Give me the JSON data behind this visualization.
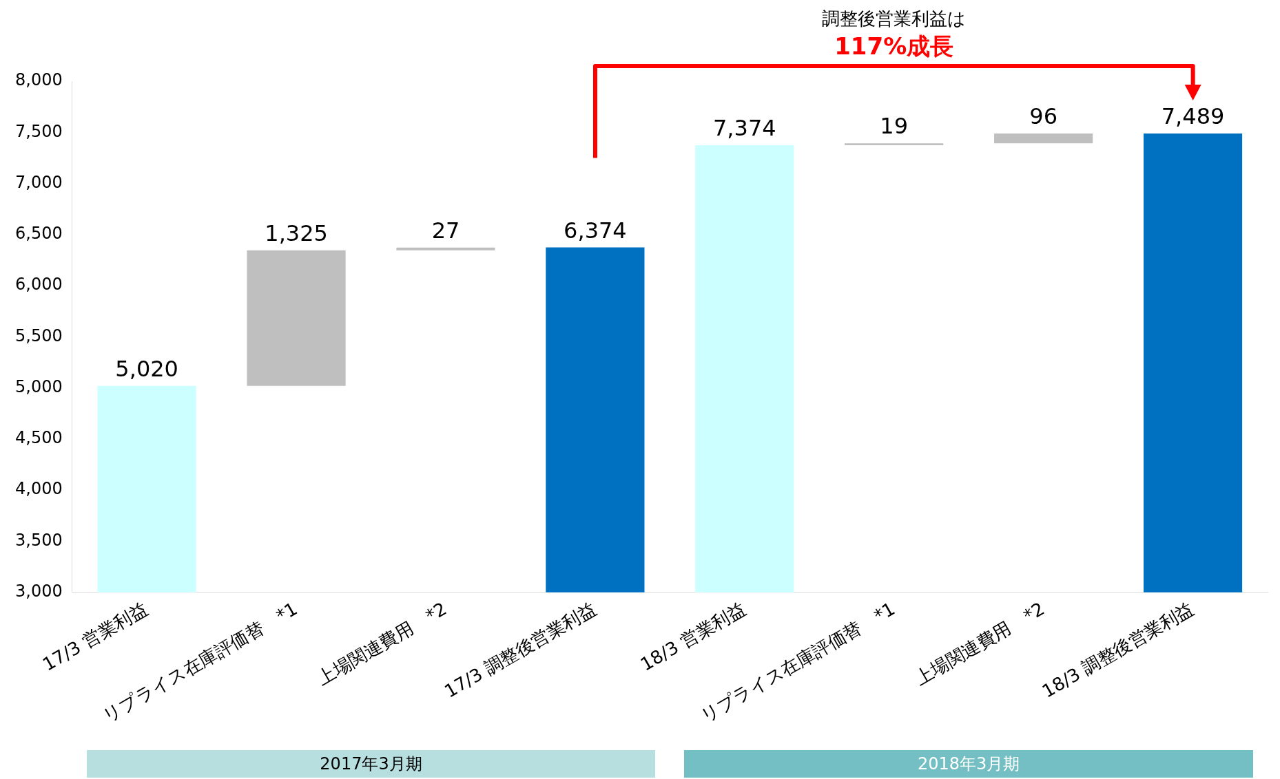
{
  "chart_data": {
    "type": "bar",
    "categories": [
      "17/3 営業利益",
      "リプライス在庫評価替　*1",
      "上場関連費用　*2",
      "17/3 調整後営業利益",
      "18/3 営業利益",
      "リプライス在庫評価替　*1",
      "上場関連費用　*2",
      "18/3 調整後営業利益"
    ],
    "values": [
      5020,
      1325,
      27,
      6374,
      7374,
      19,
      96,
      7489
    ],
    "base": [
      0,
      5020,
      6345,
      0,
      0,
      7374,
      7393,
      0
    ],
    "colors": [
      "#ccffff",
      "#bfbfbf",
      "#bfbfbf",
      "#0070c0",
      "#ccffff",
      "#bfbfbf",
      "#bfbfbf",
      "#0070c0"
    ],
    "value_labels": [
      "5,020",
      "1,325",
      "27",
      "6,374",
      "7,374",
      "19",
      "96",
      "7,489"
    ],
    "ylim": [
      3000,
      8000
    ],
    "yticks": [
      {
        "value": 3000,
        "label": "3,000"
      },
      {
        "value": 3500,
        "label": "3,500"
      },
      {
        "value": 4000,
        "label": "4,000"
      },
      {
        "value": 4500,
        "label": "4,500"
      },
      {
        "value": 5000,
        "label": "5,000"
      },
      {
        "value": 5500,
        "label": "5,500"
      },
      {
        "value": 6000,
        "label": "6,000"
      },
      {
        "value": 6500,
        "label": "6,500"
      },
      {
        "value": 7000,
        "label": "7,000"
      },
      {
        "value": 7500,
        "label": "7,500"
      },
      {
        "value": 8000,
        "label": "8,000"
      }
    ],
    "grid": false,
    "legend": false,
    "annotations": [
      "調整後営業利益は",
      "117%成長",
      "2017年3月期",
      "2018年3月期"
    ]
  }
}
